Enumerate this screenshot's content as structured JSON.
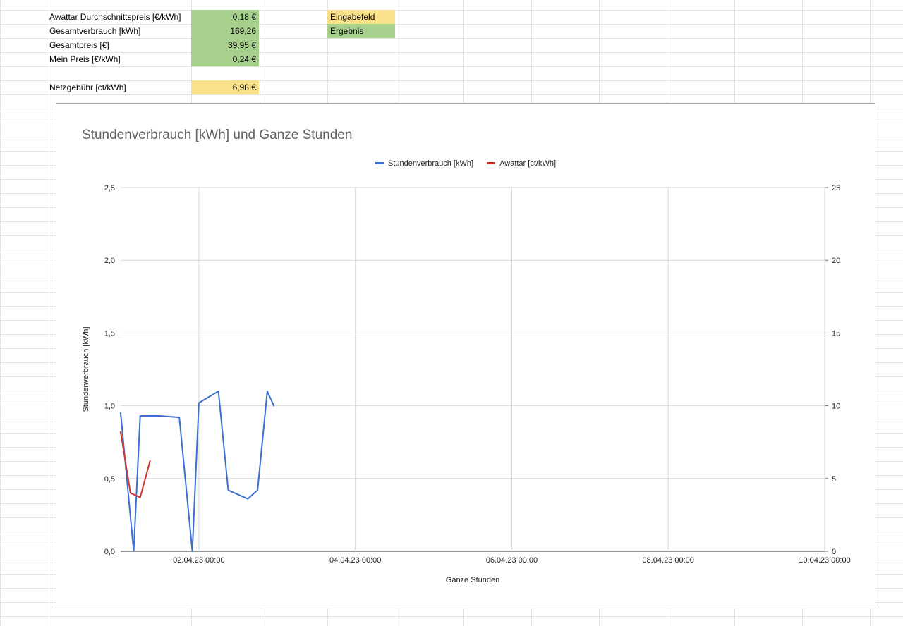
{
  "sheet": {
    "rows": [
      {
        "label": "Awattar Durchschnittspreis [€/kWh]",
        "value": "0,18 €",
        "fill": "green"
      },
      {
        "label": "Gesamtverbrauch [kWh]",
        "value": "169,26",
        "fill": "green"
      },
      {
        "label": "Gesamtpreis [€]",
        "value": "39,95 €",
        "fill": "green"
      },
      {
        "label": "Mein Preis [€/kWh]",
        "value": "0,24 €",
        "fill": "green"
      },
      {
        "label": "Netzgebühr [ct/kWh]",
        "value": "6,98 €",
        "fill": "yellow"
      }
    ],
    "legend_cells": [
      {
        "label": "Eingabefeld",
        "fill": "yellow"
      },
      {
        "label": "Ergebnis",
        "fill": "green"
      }
    ]
  },
  "colors": {
    "input_yellow": "#fbe08a",
    "result_green": "#a8d08d",
    "series_blue": "#3c6fd1",
    "series_red": "#d0342c"
  },
  "chart_data": {
    "type": "line",
    "title": "Stundenverbrauch [kWh] und Ganze Stunden",
    "xlabel": "Ganze Stunden",
    "ylabel": "Stundenverbrauch [kWh]",
    "ylim": [
      0,
      2.5
    ],
    "y2lim": [
      0,
      25
    ],
    "yticks": [
      "0,0",
      "0,5",
      "1,0",
      "1,5",
      "2,0",
      "2,5"
    ],
    "y2ticks": [
      "0",
      "5",
      "10",
      "15",
      "20",
      "25"
    ],
    "xlim": [
      "01.04.23 00:00",
      "10.04.23 00:00"
    ],
    "xticks": [
      "02.04.23 00:00",
      "04.04.23 00:00",
      "06.04.23 00:00",
      "08.04.23 00:00",
      "10.04.23 00:00"
    ],
    "legend_position": "top",
    "grid": true,
    "series": [
      {
        "name": "Stundenverbrauch [kWh]",
        "axis": "left",
        "color": "#3c6fd1",
        "points": [
          [
            "01.04.23 00:00",
            0.95
          ],
          [
            "01.04.23 06:00",
            0.93
          ],
          [
            "01.04.23 12:00",
            0.93
          ],
          [
            "01.04.23 18:00",
            0.92
          ],
          [
            "01.04.23 22:00",
            0.0
          ],
          [
            "01.04.23 04:00",
            0.0
          ],
          [
            "02.04.23 00:00",
            1.02
          ],
          [
            "02.04.23 06:00",
            1.1
          ],
          [
            "02.04.23 09:00",
            0.42
          ],
          [
            "02.04.23 15:00",
            0.36
          ],
          [
            "02.04.23 18:00",
            0.42
          ],
          [
            "02.04.23 21:00",
            1.1
          ],
          [
            "02.04.23 23:00",
            1.0
          ]
        ]
      },
      {
        "name": "Awattar [ct/kWh]",
        "axis": "right",
        "color": "#d0342c",
        "points": [
          [
            "01.04.23 00:00",
            8.2
          ],
          [
            "01.04.23 03:00",
            4.0
          ],
          [
            "01.04.23 06:00",
            3.7
          ],
          [
            "01.04.23 09:00",
            6.2
          ]
        ]
      }
    ]
  }
}
